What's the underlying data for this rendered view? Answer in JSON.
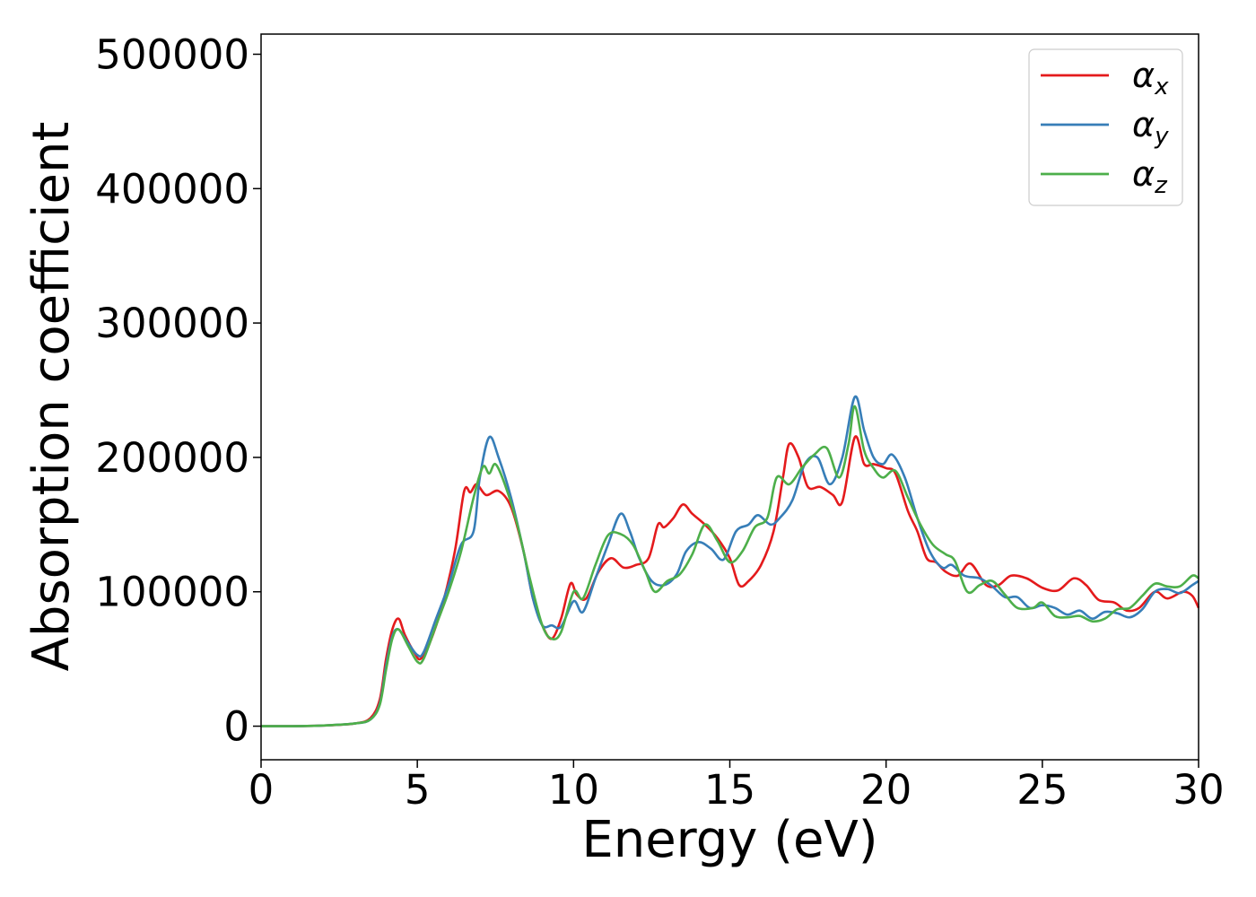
{
  "chart_data": {
    "type": "line",
    "title": "",
    "xlabel": "Energy (eV)",
    "ylabel": "Absorption coefficient",
    "xlim": [
      0,
      30
    ],
    "ylim": [
      -25000,
      515000
    ],
    "xticks": [
      0,
      5,
      10,
      15,
      20,
      25,
      30
    ],
    "yticks": [
      0,
      100000,
      200000,
      300000,
      400000,
      500000
    ],
    "xtick_labels": [
      "0",
      "5",
      "10",
      "15",
      "20",
      "25",
      "30"
    ],
    "ytick_labels": [
      "0",
      "100000",
      "200000",
      "300000",
      "400000",
      "500000"
    ],
    "grid": false,
    "legend_position": "top-right",
    "series": [
      {
        "name": "α",
        "subscript": "x",
        "color": "#e41a1c",
        "points": [
          [
            0,
            0
          ],
          [
            1,
            0
          ],
          [
            2,
            500
          ],
          [
            3,
            2000
          ],
          [
            3.5,
            6000
          ],
          [
            3.8,
            20000
          ],
          [
            4.0,
            50000
          ],
          [
            4.2,
            72000
          ],
          [
            4.4,
            80000
          ],
          [
            4.6,
            68000
          ],
          [
            4.9,
            55000
          ],
          [
            5.1,
            50000
          ],
          [
            5.4,
            62000
          ],
          [
            5.8,
            90000
          ],
          [
            6.2,
            130000
          ],
          [
            6.5,
            175000
          ],
          [
            6.7,
            174000
          ],
          [
            6.9,
            180000
          ],
          [
            7.2,
            172000
          ],
          [
            7.6,
            175000
          ],
          [
            8.0,
            163000
          ],
          [
            8.4,
            130000
          ],
          [
            8.7,
            95000
          ],
          [
            9.0,
            75000
          ],
          [
            9.3,
            65000
          ],
          [
            9.6,
            80000
          ],
          [
            9.9,
            106000
          ],
          [
            10.1,
            98000
          ],
          [
            10.4,
            95000
          ],
          [
            10.8,
            115000
          ],
          [
            11.2,
            125000
          ],
          [
            11.6,
            118000
          ],
          [
            12.0,
            120000
          ],
          [
            12.4,
            125000
          ],
          [
            12.7,
            150000
          ],
          [
            12.9,
            148000
          ],
          [
            13.2,
            155000
          ],
          [
            13.5,
            165000
          ],
          [
            13.8,
            158000
          ],
          [
            14.2,
            150000
          ],
          [
            14.6,
            140000
          ],
          [
            15.0,
            125000
          ],
          [
            15.3,
            105000
          ],
          [
            15.6,
            108000
          ],
          [
            16.0,
            120000
          ],
          [
            16.4,
            145000
          ],
          [
            16.7,
            185000
          ],
          [
            16.9,
            210000
          ],
          [
            17.2,
            200000
          ],
          [
            17.5,
            178000
          ],
          [
            17.9,
            178000
          ],
          [
            18.3,
            172000
          ],
          [
            18.6,
            167000
          ],
          [
            19.0,
            215000
          ],
          [
            19.3,
            195000
          ],
          [
            19.6,
            195000
          ],
          [
            20.0,
            192000
          ],
          [
            20.3,
            188000
          ],
          [
            20.7,
            160000
          ],
          [
            21.0,
            145000
          ],
          [
            21.3,
            125000
          ],
          [
            21.6,
            122000
          ],
          [
            21.9,
            115000
          ],
          [
            22.3,
            112000
          ],
          [
            22.7,
            121000
          ],
          [
            23.2,
            105000
          ],
          [
            23.6,
            105000
          ],
          [
            24.0,
            112000
          ],
          [
            24.5,
            110000
          ],
          [
            25.0,
            103000
          ],
          [
            25.5,
            101000
          ],
          [
            26.0,
            110000
          ],
          [
            26.4,
            105000
          ],
          [
            26.8,
            94000
          ],
          [
            27.3,
            92000
          ],
          [
            27.7,
            86000
          ],
          [
            28.1,
            88000
          ],
          [
            28.6,
            100000
          ],
          [
            29.0,
            95000
          ],
          [
            29.5,
            100000
          ],
          [
            29.8,
            97000
          ],
          [
            30.0,
            88000
          ]
        ]
      },
      {
        "name": "α",
        "subscript": "y",
        "color": "#377eb8",
        "points": [
          [
            0,
            0
          ],
          [
            1,
            0
          ],
          [
            2,
            500
          ],
          [
            3,
            2000
          ],
          [
            3.5,
            5000
          ],
          [
            3.8,
            17000
          ],
          [
            4.0,
            45000
          ],
          [
            4.2,
            67000
          ],
          [
            4.4,
            72000
          ],
          [
            4.7,
            62000
          ],
          [
            5.0,
            53000
          ],
          [
            5.2,
            55000
          ],
          [
            5.6,
            80000
          ],
          [
            6.0,
            105000
          ],
          [
            6.4,
            135000
          ],
          [
            6.8,
            145000
          ],
          [
            7.0,
            185000
          ],
          [
            7.3,
            215000
          ],
          [
            7.6,
            200000
          ],
          [
            8.0,
            170000
          ],
          [
            8.4,
            130000
          ],
          [
            8.7,
            95000
          ],
          [
            9.0,
            75000
          ],
          [
            9.3,
            75000
          ],
          [
            9.6,
            74000
          ],
          [
            10.0,
            93000
          ],
          [
            10.3,
            85000
          ],
          [
            10.7,
            110000
          ],
          [
            11.1,
            135000
          ],
          [
            11.5,
            158000
          ],
          [
            11.8,
            145000
          ],
          [
            12.1,
            125000
          ],
          [
            12.5,
            108000
          ],
          [
            12.9,
            105000
          ],
          [
            13.3,
            113000
          ],
          [
            13.6,
            130000
          ],
          [
            14.0,
            137000
          ],
          [
            14.4,
            132000
          ],
          [
            14.8,
            124000
          ],
          [
            15.2,
            145000
          ],
          [
            15.6,
            150000
          ],
          [
            15.9,
            157000
          ],
          [
            16.3,
            150000
          ],
          [
            16.6,
            155000
          ],
          [
            17.0,
            168000
          ],
          [
            17.4,
            195000
          ],
          [
            17.8,
            200000
          ],
          [
            18.2,
            180000
          ],
          [
            18.6,
            200000
          ],
          [
            19.0,
            245000
          ],
          [
            19.3,
            220000
          ],
          [
            19.6,
            200000
          ],
          [
            19.9,
            195000
          ],
          [
            20.2,
            202000
          ],
          [
            20.6,
            185000
          ],
          [
            21.0,
            155000
          ],
          [
            21.4,
            130000
          ],
          [
            21.8,
            118000
          ],
          [
            22.1,
            120000
          ],
          [
            22.5,
            112000
          ],
          [
            23.0,
            110000
          ],
          [
            23.4,
            104000
          ],
          [
            23.8,
            96000
          ],
          [
            24.2,
            96000
          ],
          [
            24.6,
            88000
          ],
          [
            25.0,
            90000
          ],
          [
            25.4,
            88000
          ],
          [
            25.8,
            83000
          ],
          [
            26.2,
            86000
          ],
          [
            26.6,
            80000
          ],
          [
            27.0,
            85000
          ],
          [
            27.4,
            84000
          ],
          [
            27.8,
            81000
          ],
          [
            28.2,
            87000
          ],
          [
            28.6,
            100000
          ],
          [
            29.0,
            102000
          ],
          [
            29.4,
            99000
          ],
          [
            29.8,
            105000
          ],
          [
            30.0,
            108000
          ]
        ]
      },
      {
        "name": "α",
        "subscript": "z",
        "color": "#4daf4a",
        "points": [
          [
            0,
            0
          ],
          [
            1,
            0
          ],
          [
            2,
            500
          ],
          [
            3,
            2000
          ],
          [
            3.5,
            5000
          ],
          [
            3.8,
            16000
          ],
          [
            4.0,
            42000
          ],
          [
            4.2,
            65000
          ],
          [
            4.4,
            72000
          ],
          [
            4.7,
            60000
          ],
          [
            5.0,
            48000
          ],
          [
            5.2,
            50000
          ],
          [
            5.6,
            75000
          ],
          [
            6.0,
            100000
          ],
          [
            6.4,
            130000
          ],
          [
            6.8,
            170000
          ],
          [
            7.1,
            193000
          ],
          [
            7.3,
            188000
          ],
          [
            7.5,
            195000
          ],
          [
            7.8,
            180000
          ],
          [
            8.2,
            150000
          ],
          [
            8.6,
            110000
          ],
          [
            9.0,
            75000
          ],
          [
            9.3,
            65000
          ],
          [
            9.6,
            70000
          ],
          [
            10.0,
            100000
          ],
          [
            10.3,
            95000
          ],
          [
            10.7,
            120000
          ],
          [
            11.1,
            142000
          ],
          [
            11.5,
            143000
          ],
          [
            11.9,
            135000
          ],
          [
            12.3,
            115000
          ],
          [
            12.6,
            100000
          ],
          [
            13.0,
            108000
          ],
          [
            13.4,
            113000
          ],
          [
            13.8,
            128000
          ],
          [
            14.2,
            150000
          ],
          [
            14.6,
            138000
          ],
          [
            15.0,
            122000
          ],
          [
            15.4,
            130000
          ],
          [
            15.8,
            148000
          ],
          [
            16.2,
            155000
          ],
          [
            16.5,
            185000
          ],
          [
            16.9,
            180000
          ],
          [
            17.3,
            192000
          ],
          [
            17.7,
            202000
          ],
          [
            18.1,
            207000
          ],
          [
            18.5,
            185000
          ],
          [
            18.8,
            210000
          ],
          [
            19.0,
            238000
          ],
          [
            19.3,
            205000
          ],
          [
            19.6,
            192000
          ],
          [
            19.9,
            185000
          ],
          [
            20.3,
            190000
          ],
          [
            20.7,
            170000
          ],
          [
            21.1,
            150000
          ],
          [
            21.5,
            135000
          ],
          [
            21.9,
            128000
          ],
          [
            22.2,
            123000
          ],
          [
            22.6,
            100000
          ],
          [
            23.0,
            105000
          ],
          [
            23.4,
            108000
          ],
          [
            23.8,
            98000
          ],
          [
            24.2,
            88000
          ],
          [
            24.7,
            88000
          ],
          [
            25.0,
            92000
          ],
          [
            25.4,
            82000
          ],
          [
            25.8,
            81000
          ],
          [
            26.2,
            82000
          ],
          [
            26.6,
            78000
          ],
          [
            27.0,
            80000
          ],
          [
            27.4,
            87000
          ],
          [
            27.8,
            88000
          ],
          [
            28.2,
            97000
          ],
          [
            28.6,
            106000
          ],
          [
            29.0,
            104000
          ],
          [
            29.4,
            104000
          ],
          [
            29.8,
            112000
          ],
          [
            30.0,
            110000
          ]
        ]
      }
    ]
  }
}
